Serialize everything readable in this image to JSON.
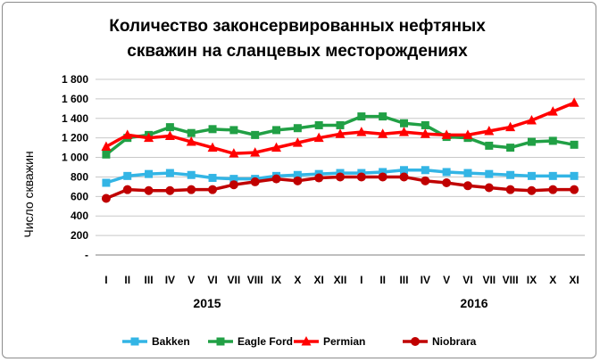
{
  "chart_data": {
    "type": "line",
    "title_lines": [
      "Количество законсервированных нефтяных",
      "скважин на сланцевых месторождениях"
    ],
    "ylabel": "Число скважин",
    "xlabel": "",
    "y_ticks": [
      "-",
      "200",
      "400",
      "600",
      "800",
      "1 000",
      "1 200",
      "1 400",
      "1 600",
      "1 800"
    ],
    "ylim": [
      0,
      1800
    ],
    "grid": true,
    "legend_position": "bottom",
    "categories": [
      "I",
      "II",
      "III",
      "IV",
      "V",
      "VI",
      "VII",
      "VIII",
      "IX",
      "X",
      "XI",
      "XII",
      "I",
      "II",
      "III",
      "IV",
      "V",
      "VI",
      "VII",
      "VIII",
      "IX",
      "X",
      "XI"
    ],
    "year_labels": [
      "2015",
      "2016"
    ],
    "series": [
      {
        "name": "Bakken",
        "color": "#33b5e5",
        "marker": "square",
        "values": [
          740,
          810,
          830,
          840,
          820,
          790,
          780,
          780,
          810,
          820,
          830,
          840,
          840,
          850,
          870,
          870,
          850,
          840,
          830,
          820,
          810,
          810,
          810
        ]
      },
      {
        "name": "Eagle Ford",
        "color": "#21a045",
        "marker": "square",
        "values": [
          1030,
          1200,
          1230,
          1310,
          1250,
          1290,
          1280,
          1230,
          1280,
          1300,
          1330,
          1330,
          1420,
          1420,
          1350,
          1330,
          1210,
          1200,
          1120,
          1100,
          1160,
          1170,
          1130
        ]
      },
      {
        "name": "Permian",
        "color": "#ff0000",
        "marker": "triangle",
        "values": [
          1110,
          1230,
          1200,
          1220,
          1160,
          1100,
          1040,
          1050,
          1100,
          1150,
          1200,
          1240,
          1260,
          1240,
          1260,
          1240,
          1230,
          1230,
          1270,
          1310,
          1380,
          1470,
          1560
        ]
      },
      {
        "name": "Niobrara",
        "color": "#c00000",
        "marker": "circle",
        "values": [
          580,
          670,
          660,
          660,
          670,
          670,
          720,
          750,
          780,
          760,
          790,
          800,
          800,
          800,
          800,
          760,
          740,
          710,
          690,
          670,
          660,
          670,
          670
        ]
      }
    ]
  }
}
